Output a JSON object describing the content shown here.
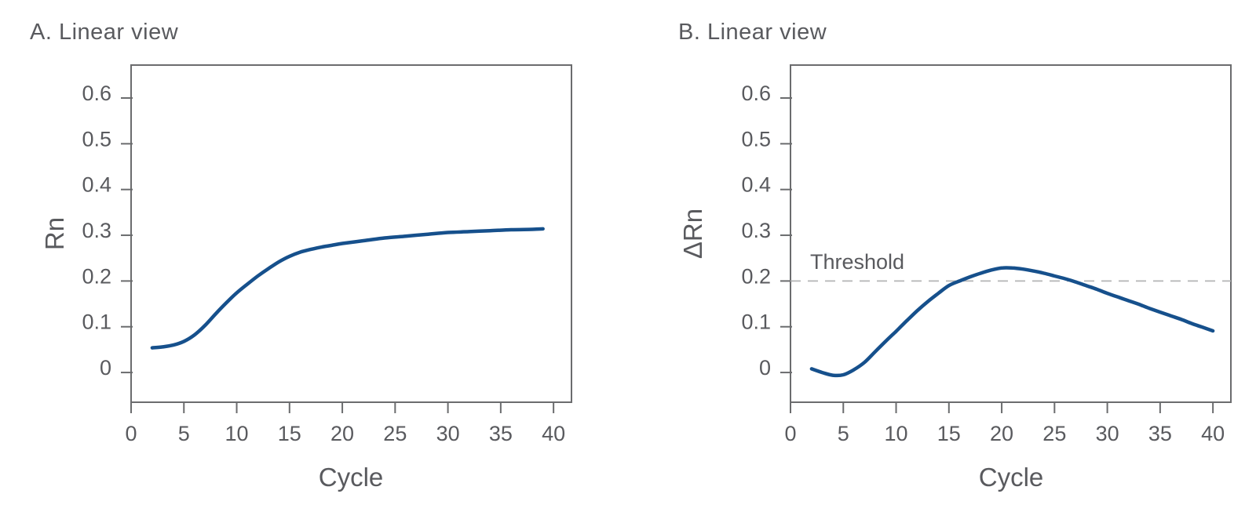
{
  "page": {
    "background": "#ffffff"
  },
  "colors": {
    "curve": "#16508c",
    "axis": "#6b6c6e",
    "text": "#595a5e",
    "tick_text": "#6b6c6e",
    "threshold_line": "#b3b4b6"
  },
  "chart_data": [
    {
      "panel": "A",
      "type": "line",
      "title": "A. Linear view",
      "xlabel": "Cycle",
      "ylabel": "Rn",
      "x_ticks": [
        0,
        5,
        10,
        15,
        20,
        25,
        30,
        35,
        40
      ],
      "x_tick_labels": [
        "0",
        "5",
        "10",
        "15",
        "20",
        "25",
        "30",
        "35",
        "40"
      ],
      "y_ticks": [
        0,
        0.1,
        0.2,
        0.3,
        0.4,
        0.5,
        0.6
      ],
      "y_tick_labels": [
        "0",
        "0.1",
        "0.2",
        "0.3",
        "0.4",
        "0.5",
        "0.6"
      ],
      "xlim": [
        0,
        41.7
      ],
      "ylim": [
        -0.065,
        0.672
      ],
      "grid": false,
      "legend": "none",
      "series": [
        {
          "name": "Rn amplification curve",
          "points": [
            [
              2,
              0.054
            ],
            [
              3,
              0.056
            ],
            [
              4,
              0.06
            ],
            [
              5,
              0.068
            ],
            [
              6,
              0.082
            ],
            [
              7,
              0.103
            ],
            [
              8,
              0.128
            ],
            [
              9,
              0.152
            ],
            [
              10,
              0.174
            ],
            [
              11,
              0.193
            ],
            [
              12,
              0.211
            ],
            [
              13,
              0.227
            ],
            [
              14,
              0.242
            ],
            [
              15,
              0.254
            ],
            [
              16,
              0.263
            ],
            [
              17,
              0.269
            ],
            [
              18,
              0.274
            ],
            [
              19,
              0.278
            ],
            [
              20,
              0.282
            ],
            [
              22,
              0.288
            ],
            [
              24,
              0.294
            ],
            [
              26,
              0.298
            ],
            [
              28,
              0.302
            ],
            [
              30,
              0.306
            ],
            [
              32,
              0.308
            ],
            [
              34,
              0.31
            ],
            [
              36,
              0.312
            ],
            [
              38,
              0.313
            ],
            [
              39,
              0.314
            ]
          ]
        }
      ]
    },
    {
      "panel": "B",
      "type": "line",
      "title": "B. Linear view",
      "xlabel": "Cycle",
      "ylabel": "ΔRn",
      "x_ticks": [
        0,
        5,
        10,
        15,
        20,
        25,
        30,
        35,
        40
      ],
      "x_tick_labels": [
        "0",
        "5",
        "10",
        "15",
        "20",
        "25",
        "30",
        "35",
        "40"
      ],
      "y_ticks": [
        0,
        0.1,
        0.2,
        0.3,
        0.4,
        0.5,
        0.6
      ],
      "y_tick_labels": [
        "0",
        "0.1",
        "0.2",
        "0.3",
        "0.4",
        "0.5",
        "0.6"
      ],
      "xlim": [
        0,
        41.7
      ],
      "ylim": [
        -0.065,
        0.672
      ],
      "grid": false,
      "legend": "none",
      "threshold": {
        "label": "Threshold",
        "value": 0.2
      },
      "series": [
        {
          "name": "ΔRn amplification curve",
          "points": [
            [
              2,
              0.008
            ],
            [
              3,
              0.0
            ],
            [
              4,
              -0.006
            ],
            [
              5,
              -0.005
            ],
            [
              6,
              0.006
            ],
            [
              7,
              0.022
            ],
            [
              8,
              0.045
            ],
            [
              9,
              0.068
            ],
            [
              10,
              0.09
            ],
            [
              11,
              0.113
            ],
            [
              12,
              0.135
            ],
            [
              13,
              0.155
            ],
            [
              14,
              0.173
            ],
            [
              15,
              0.19
            ],
            [
              16,
              0.2
            ],
            [
              17,
              0.209
            ],
            [
              18,
              0.217
            ],
            [
              19,
              0.224
            ],
            [
              20,
              0.2285
            ],
            [
              21,
              0.2285
            ],
            [
              22,
              0.226
            ],
            [
              23,
              0.222
            ],
            [
              24,
              0.217
            ],
            [
              25,
              0.211
            ],
            [
              26,
              0.205
            ],
            [
              27,
              0.198
            ],
            [
              28,
              0.19
            ],
            [
              29,
              0.182
            ],
            [
              30,
              0.173
            ],
            [
              31,
              0.165
            ],
            [
              32,
              0.157
            ],
            [
              33,
              0.149
            ],
            [
              34,
              0.14
            ],
            [
              35,
              0.132
            ],
            [
              36,
              0.124
            ],
            [
              37,
              0.116
            ],
            [
              38,
              0.107
            ],
            [
              39,
              0.099
            ],
            [
              40,
              0.091
            ]
          ]
        }
      ]
    }
  ]
}
